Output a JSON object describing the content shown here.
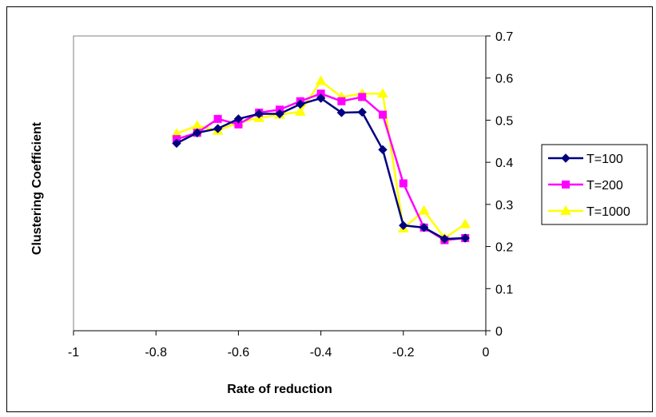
{
  "chart_data": {
    "type": "line",
    "xlabel": "Rate of reduction",
    "ylabel": "Clustering Coefficient",
    "xlim": [
      -1,
      0
    ],
    "ylim": [
      0,
      0.7
    ],
    "x_ticks": [
      "-1",
      "-0.8",
      "-0.6",
      "-0.4",
      "-0.2",
      "0"
    ],
    "y_ticks": [
      "0",
      "0.1",
      "0.2",
      "0.3",
      "0.4",
      "0.5",
      "0.6",
      "0.7"
    ],
    "y_axis_side": "right",
    "grid": false,
    "legend_position": "right",
    "series": [
      {
        "name": "T=100",
        "color": "#000080",
        "marker": "diamond",
        "x": [
          -0.75,
          -0.7,
          -0.65,
          -0.6,
          -0.55,
          -0.5,
          -0.45,
          -0.4,
          -0.35,
          -0.3,
          -0.25,
          -0.2,
          -0.15,
          -0.1,
          -0.05
        ],
        "y": [
          0.445,
          0.47,
          0.48,
          0.503,
          0.515,
          0.515,
          0.538,
          0.552,
          0.518,
          0.519,
          0.43,
          0.25,
          0.245,
          0.218,
          0.22
        ]
      },
      {
        "name": "T=200",
        "color": "#FF00FF",
        "marker": "square",
        "x": [
          -0.75,
          -0.7,
          -0.65,
          -0.6,
          -0.55,
          -0.5,
          -0.45,
          -0.4,
          -0.35,
          -0.3,
          -0.25,
          -0.2,
          -0.15,
          -0.1,
          -0.05
        ],
        "y": [
          0.455,
          0.47,
          0.503,
          0.49,
          0.518,
          0.525,
          0.545,
          0.563,
          0.545,
          0.555,
          0.513,
          0.35,
          0.245,
          0.215,
          0.22
        ]
      },
      {
        "name": "T=1000",
        "color": "#FFFF00",
        "marker": "triangle",
        "x": [
          -0.75,
          -0.7,
          -0.65,
          -0.6,
          -0.55,
          -0.5,
          -0.45,
          -0.4,
          -0.35,
          -0.3,
          -0.25,
          -0.2,
          -0.15,
          -0.1,
          -0.05
        ],
        "y": [
          0.468,
          0.487,
          0.475,
          0.495,
          0.505,
          0.513,
          0.52,
          0.593,
          0.555,
          0.563,
          0.563,
          0.243,
          0.285,
          0.22,
          0.253
        ]
      }
    ]
  }
}
